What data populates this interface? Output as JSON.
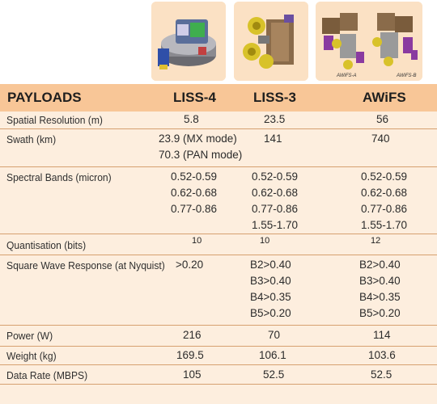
{
  "images": [
    {
      "name": "LISS-4 payload",
      "icon": "liss4-camera-image"
    },
    {
      "name": "LISS-3 payload",
      "icon": "liss3-camera-image"
    },
    {
      "name": "AWiFS payload",
      "icon": "awifs-camera-image",
      "captions": [
        "AWiFS-A",
        "AWiFS-B"
      ]
    }
  ],
  "table": {
    "headers": [
      "PAYLOADS",
      "LISS-4",
      "LISS-3",
      "AWiFS"
    ],
    "rows": [
      {
        "label": "Spatial Resolution (m)",
        "c1": [
          "5.8"
        ],
        "c2": [
          "23.5"
        ],
        "c3": [
          "56"
        ]
      },
      {
        "label": "Swath (km)",
        "c1": [
          "23.9 (MX mode)",
          "70.3 (PAN mode)"
        ],
        "c2": [
          "141"
        ],
        "c3": [
          "740"
        ]
      },
      {
        "label": "Spectral Bands (micron)",
        "c1": [
          "0.52-0.59",
          "0.62-0.68",
          "0.77-0.86"
        ],
        "c2": [
          "0.52-0.59",
          "0.62-0.68",
          "0.77-0.86",
          "1.55-1.70"
        ],
        "c3": [
          "0.52-0.59",
          "0.62-0.68",
          "0.77-0.86",
          "1.55-1.70"
        ]
      },
      {
        "label": "Quantisation (bits)",
        "c1": [
          "10"
        ],
        "c2": [
          "10"
        ],
        "c3": [
          "12"
        ]
      },
      {
        "label": "Square Wave Response (at Nyquist)",
        "c1": [
          ">0.20"
        ],
        "c2": [
          "B2>0.40",
          "B3>0.40",
          "B4>0.35",
          "B5>0.20"
        ],
        "c3": [
          "B2>0.40",
          "B3>0.40",
          "B4>0.35",
          "B5>0.20"
        ]
      },
      {
        "label": "Power (W)",
        "c1": [
          "216"
        ],
        "c2": [
          "70"
        ],
        "c3": [
          "114"
        ]
      },
      {
        "label": "Weight (kg)",
        "c1": [
          "169.5"
        ],
        "c2": [
          "106.1"
        ],
        "c3": [
          "103.6"
        ]
      },
      {
        "label": "Data Rate (MBPS)",
        "c1": [
          "105"
        ],
        "c2": [
          "52.5"
        ],
        "c3": [
          "52.5"
        ]
      }
    ]
  },
  "colors": {
    "header_band": "#f8c697",
    "body_background": "#fdeede",
    "rule": "#d6a070"
  }
}
